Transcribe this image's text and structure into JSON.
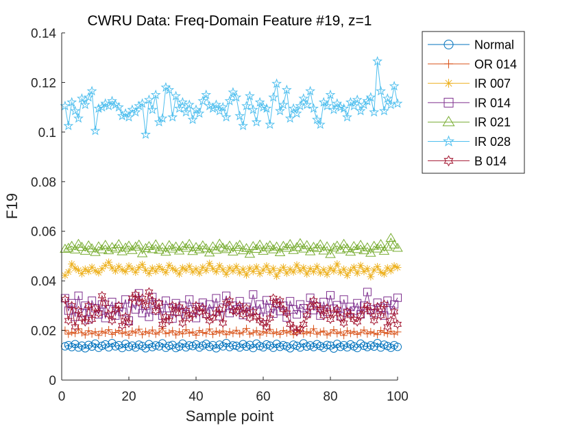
{
  "chart_data": {
    "type": "line",
    "title": "CWRU Data: Freq-Domain Feature #19, z=1",
    "xlabel": "Sample point",
    "ylabel": "F19",
    "xlim": [
      0,
      100
    ],
    "ylim": [
      0,
      0.14
    ],
    "xticks": [
      "0",
      "20",
      "40",
      "60",
      "80",
      "100"
    ],
    "yticks": [
      "0",
      "0.02",
      "0.04",
      "0.06",
      "0.08",
      "0.1",
      "0.12",
      "0.14"
    ],
    "grid": false,
    "legend_position": "outside-top-right",
    "x": [
      1,
      2,
      3,
      4,
      5,
      6,
      7,
      8,
      9,
      10,
      11,
      12,
      13,
      14,
      15,
      16,
      17,
      18,
      19,
      20,
      21,
      22,
      23,
      24,
      25,
      26,
      27,
      28,
      29,
      30,
      31,
      32,
      33,
      34,
      35,
      36,
      37,
      38,
      39,
      40,
      41,
      42,
      43,
      44,
      45,
      46,
      47,
      48,
      49,
      50,
      51,
      52,
      53,
      54,
      55,
      56,
      57,
      58,
      59,
      60,
      61,
      62,
      63,
      64,
      65,
      66,
      67,
      68,
      69,
      70,
      71,
      72,
      73,
      74,
      75,
      76,
      77,
      78,
      79,
      80,
      81,
      82,
      83,
      84,
      85,
      86,
      87,
      88,
      89,
      90,
      91,
      92,
      93,
      94,
      95,
      96,
      97,
      98,
      99,
      100
    ],
    "series": [
      {
        "name": "Normal",
        "color": "#0072BD",
        "marker": "circle",
        "values": [
          0.0136,
          0.0141,
          0.0133,
          0.0145,
          0.0131,
          0.0139,
          0.0128,
          0.0142,
          0.0135,
          0.0147,
          0.013,
          0.0138,
          0.0144,
          0.0132,
          0.0149,
          0.0136,
          0.0141,
          0.0129,
          0.0146,
          0.0134,
          0.0139,
          0.0131,
          0.0143,
          0.0137,
          0.0128,
          0.0145,
          0.0133,
          0.014,
          0.0136,
          0.0148,
          0.013,
          0.0138,
          0.0142,
          0.0129,
          0.0135,
          0.0147,
          0.0132,
          0.014,
          0.0137,
          0.0144,
          0.0131,
          0.0139,
          0.0146,
          0.0134,
          0.0141,
          0.0128,
          0.0143,
          0.0136,
          0.0149,
          0.0133,
          0.014,
          0.0138,
          0.0131,
          0.0145,
          0.0135,
          0.0142,
          0.0129,
          0.0147,
          0.0137,
          0.0132,
          0.0144,
          0.0139,
          0.013,
          0.0146,
          0.0134,
          0.0141,
          0.0136,
          0.0128,
          0.0143,
          0.0138,
          0.0131,
          0.0148,
          0.0135,
          0.014,
          0.0133,
          0.0145,
          0.0137,
          0.013,
          0.0142,
          0.0139,
          0.0127,
          0.0146,
          0.0134,
          0.0141,
          0.0132,
          0.0144,
          0.0136,
          0.0129,
          0.0147,
          0.0138,
          0.0133,
          0.014,
          0.0135,
          0.0149,
          0.0131,
          0.0143,
          0.0137,
          0.013,
          0.0141,
          0.0134
        ]
      },
      {
        "name": "OR 014",
        "color": "#D95319",
        "marker": "plus",
        "values": [
          0.0201,
          0.0185,
          0.0193,
          0.0188,
          0.0207,
          0.0191,
          0.0182,
          0.0199,
          0.0186,
          0.0195,
          0.018,
          0.0197,
          0.0189,
          0.0203,
          0.0184,
          0.0192,
          0.02,
          0.0187,
          0.0194,
          0.0181,
          0.0198,
          0.019,
          0.0205,
          0.0183,
          0.0196,
          0.0188,
          0.0202,
          0.0185,
          0.0193,
          0.0209,
          0.0187,
          0.0191,
          0.0199,
          0.0182,
          0.0195,
          0.0186,
          0.0203,
          0.0189,
          0.0194,
          0.0181,
          0.02,
          0.0192,
          0.0187,
          0.0206,
          0.0184,
          0.0197,
          0.019,
          0.0198,
          0.0183,
          0.0195,
          0.0188,
          0.0201,
          0.0186,
          0.0193,
          0.0208,
          0.0185,
          0.0191,
          0.0199,
          0.0182,
          0.0196,
          0.0189,
          0.0204,
          0.0187,
          0.0194,
          0.0184,
          0.02,
          0.019,
          0.0197,
          0.0183,
          0.0192,
          0.0201,
          0.0186,
          0.0195,
          0.0189,
          0.0207,
          0.0185,
          0.0193,
          0.0198,
          0.0182,
          0.019,
          0.0203,
          0.0187,
          0.0194,
          0.018,
          0.0199,
          0.0188,
          0.0196,
          0.0184,
          0.0191,
          0.0202,
          0.0186,
          0.0195,
          0.0189,
          0.0183,
          0.02,
          0.0192,
          0.0187,
          0.0197,
          0.0185,
          0.0194
        ]
      },
      {
        "name": "IR 007",
        "color": "#EDB120",
        "marker": "asterisk",
        "values": [
          0.0422,
          0.0436,
          0.0468,
          0.0451,
          0.0443,
          0.0429,
          0.0447,
          0.0438,
          0.0455,
          0.0441,
          0.0433,
          0.0449,
          0.0462,
          0.0475,
          0.0452,
          0.044,
          0.0458,
          0.0445,
          0.0437,
          0.046,
          0.0448,
          0.0435,
          0.0454,
          0.0466,
          0.0443,
          0.043,
          0.0451,
          0.0439,
          0.0457,
          0.0446,
          0.0434,
          0.0463,
          0.045,
          0.0441,
          0.0428,
          0.0453,
          0.0444,
          0.0459,
          0.0436,
          0.0448,
          0.0431,
          0.0455,
          0.0442,
          0.047,
          0.0449,
          0.0437,
          0.0461,
          0.0445,
          0.0427,
          0.0452,
          0.044,
          0.0458,
          0.0433,
          0.0447,
          0.0424,
          0.0451,
          0.0438,
          0.0456,
          0.0429,
          0.0444,
          0.046,
          0.0435,
          0.045,
          0.0419,
          0.0442,
          0.0455,
          0.0431,
          0.0447,
          0.0436,
          0.0464,
          0.0441,
          0.0453,
          0.0428,
          0.0449,
          0.0437,
          0.0458,
          0.0432,
          0.0445,
          0.0426,
          0.0451,
          0.044,
          0.0468,
          0.0434,
          0.0447,
          0.0422,
          0.0443,
          0.0455,
          0.0431,
          0.0462,
          0.0438,
          0.0449,
          0.0417,
          0.0444,
          0.0457,
          0.0435,
          0.0428,
          0.0452,
          0.0441,
          0.046,
          0.0454
        ]
      },
      {
        "name": "IR 014",
        "color": "#7E2F8E",
        "marker": "square",
        "values": [
          0.033,
          0.028,
          0.031,
          0.0255,
          0.034,
          0.027,
          0.03,
          0.0245,
          0.032,
          0.029,
          0.0265,
          0.0305,
          0.025,
          0.0285,
          0.0315,
          0.026,
          0.0295,
          0.0275,
          0.0325,
          0.024,
          0.031,
          0.0285,
          0.035,
          0.027,
          0.03,
          0.0255,
          0.0335,
          0.028,
          0.0305,
          0.026,
          0.032,
          0.029,
          0.0248,
          0.031,
          0.0275,
          0.03,
          0.0265,
          0.0325,
          0.0285,
          0.025,
          0.0295,
          0.0312,
          0.0268,
          0.0305,
          0.0278,
          0.033,
          0.0258,
          0.0292,
          0.034,
          0.027,
          0.03,
          0.0285,
          0.0318,
          0.0262,
          0.0295,
          0.0275,
          0.0345,
          0.028,
          0.0305,
          0.0255,
          0.0322,
          0.029,
          0.0268,
          0.031,
          0.0278,
          0.03,
          0.0252,
          0.0318,
          0.0285,
          0.0265,
          0.0305,
          0.029,
          0.027,
          0.0332,
          0.0282,
          0.0298,
          0.026,
          0.0315,
          0.0275,
          0.0342,
          0.0288,
          0.0302,
          0.0258,
          0.0325,
          0.0272,
          0.0295,
          0.028,
          0.031,
          0.0265,
          0.03,
          0.0355,
          0.0285,
          0.027,
          0.0312,
          0.0292,
          0.026,
          0.032,
          0.0282,
          0.0305,
          0.0332
        ]
      },
      {
        "name": "IR 021",
        "color": "#77AC30",
        "marker": "triangle",
        "values": [
          0.0528,
          0.0532,
          0.054,
          0.0525,
          0.0548,
          0.0536,
          0.052,
          0.0542,
          0.053,
          0.0515,
          0.0538,
          0.0526,
          0.0544,
          0.0522,
          0.0535,
          0.0529,
          0.0547,
          0.0518,
          0.0533,
          0.0541,
          0.0523,
          0.0537,
          0.0545,
          0.051,
          0.0531,
          0.0539,
          0.0527,
          0.0546,
          0.0524,
          0.0534,
          0.0516,
          0.0543,
          0.0529,
          0.0537,
          0.0521,
          0.054,
          0.0532,
          0.0548,
          0.0519,
          0.0535,
          0.0526,
          0.0542,
          0.053,
          0.0513,
          0.0538,
          0.0524,
          0.0549,
          0.0533,
          0.0527,
          0.0541,
          0.0517,
          0.0536,
          0.0544,
          0.0522,
          0.0531,
          0.0508,
          0.0539,
          0.0528,
          0.0545,
          0.052,
          0.0534,
          0.0542,
          0.0526,
          0.0537,
          0.0514,
          0.054,
          0.0532,
          0.0547,
          0.0523,
          0.0535,
          0.0551,
          0.0529,
          0.0543,
          0.0518,
          0.0536,
          0.0531,
          0.0546,
          0.0521,
          0.0538,
          0.0507,
          0.0533,
          0.0541,
          0.0525,
          0.0548,
          0.053,
          0.0516,
          0.0539,
          0.0527,
          0.0544,
          0.0522,
          0.0534,
          0.0512,
          0.054,
          0.0529,
          0.0547,
          0.052,
          0.0537,
          0.0572,
          0.0545,
          0.0532
        ]
      },
      {
        "name": "IR 028",
        "color": "#4DBEEE",
        "marker": "pentagram",
        "values": [
          0.1105,
          0.1025,
          0.112,
          0.1085,
          0.1055,
          0.1135,
          0.111,
          0.114,
          0.1165,
          0.1005,
          0.1095,
          0.11,
          0.1115,
          0.1105,
          0.1125,
          0.111,
          0.11,
          0.1065,
          0.1075,
          0.106,
          0.109,
          0.108,
          0.1105,
          0.1115,
          0.099,
          0.113,
          0.109,
          0.115,
          0.104,
          0.1055,
          0.118,
          0.117,
          0.106,
          0.1145,
          0.1095,
          0.112,
          0.108,
          0.111,
          0.105,
          0.109,
          0.1075,
          0.1125,
          0.115,
          0.1105,
          0.1095,
          0.111,
          0.1085,
          0.11,
          0.106,
          0.1125,
          0.116,
          0.114,
          0.1065,
          0.1025,
          0.1105,
          0.1145,
          0.109,
          0.104,
          0.112,
          0.11,
          0.1095,
          0.103,
          0.114,
          0.1195,
          0.1085,
          0.111,
          0.117,
          0.1055,
          0.1095,
          0.1075,
          0.1105,
          0.1135,
          0.111,
          0.1165,
          0.1095,
          0.105,
          0.103,
          0.112,
          0.1105,
          0.115,
          0.109,
          0.1115,
          0.11,
          0.1095,
          0.106,
          0.112,
          0.1105,
          0.113,
          0.1085,
          0.111,
          0.1125,
          0.114,
          0.108,
          0.1285,
          0.1165,
          0.1085,
          0.1135,
          0.111,
          0.1185,
          0.1115
        ]
      },
      {
        "name": "B 014",
        "color": "#A2142F",
        "marker": "hexagram",
        "values": [
          0.0325,
          0.024,
          0.03,
          0.0215,
          0.028,
          0.025,
          0.0235,
          0.03,
          0.0245,
          0.029,
          0.027,
          0.034,
          0.031,
          0.0265,
          0.024,
          0.0285,
          0.03,
          0.022,
          0.0255,
          0.023,
          0.033,
          0.0345,
          0.0315,
          0.033,
          0.03,
          0.0355,
          0.032,
          0.028,
          0.031,
          0.0225,
          0.0255,
          0.024,
          0.03,
          0.027,
          0.0295,
          0.023,
          0.028,
          0.025,
          0.0265,
          0.03,
          0.0275,
          0.029,
          0.026,
          0.024,
          0.025,
          0.027,
          0.0285,
          0.023,
          0.031,
          0.032,
          0.028,
          0.0275,
          0.03,
          0.0265,
          0.029,
          0.025,
          0.0275,
          0.0255,
          0.024,
          0.023,
          0.0215,
          0.025,
          0.033,
          0.0305,
          0.032,
          0.0285,
          0.027,
          0.0225,
          0.021,
          0.0195,
          0.0205,
          0.0225,
          0.026,
          0.0295,
          0.032,
          0.03,
          0.0285,
          0.026,
          0.029,
          0.0245,
          0.027,
          0.0285,
          0.025,
          0.023,
          0.0275,
          0.026,
          0.0245,
          0.0235,
          0.026,
          0.0285,
          0.03,
          0.0275,
          0.024,
          0.0295,
          0.026,
          0.0305,
          0.0215,
          0.024,
          0.0275,
          0.0225
        ]
      }
    ]
  }
}
